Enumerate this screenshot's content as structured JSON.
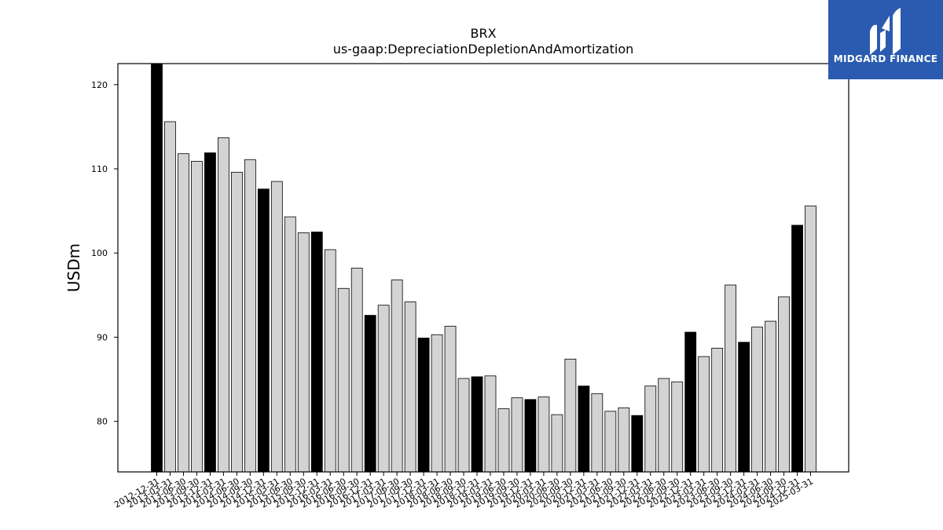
{
  "brand": {
    "name": "MIDGARD FINANCE",
    "icon": "midgard-logo-icon",
    "color": "#2a5bb0"
  },
  "chart_data": {
    "type": "bar",
    "title": "BRX",
    "subtitle": "us-gaap:DepreciationDepletionAndAmortization",
    "xlabel": "",
    "ylabel": "USDm",
    "ylim": [
      74,
      122.5
    ],
    "yticks": [
      80,
      90,
      100,
      110,
      120
    ],
    "grid": false,
    "colors": {
      "highlight": "#000000",
      "default": "#d3d3d3",
      "edge": "#000000"
    },
    "categories": [
      "2012-12-31",
      "2013-03-31",
      "2013-06-30",
      "2013-09-30",
      "2013-12-31",
      "2014-03-31",
      "2014-06-30",
      "2014-09-30",
      "2014-12-31",
      "2015-03-31",
      "2015-06-30",
      "2015-09-30",
      "2015-12-31",
      "2016-03-31",
      "2016-06-30",
      "2016-09-30",
      "2016-12-31",
      "2017-03-31",
      "2017-06-30",
      "2017-09-30",
      "2017-12-31",
      "2018-03-31",
      "2018-06-30",
      "2018-09-30",
      "2018-12-31",
      "2019-03-31",
      "2019-06-30",
      "2019-09-30",
      "2019-12-31",
      "2020-03-31",
      "2020-06-30",
      "2020-09-30",
      "2020-12-31",
      "2021-03-31",
      "2021-06-30",
      "2021-09-30",
      "2021-12-31",
      "2022-03-31",
      "2022-06-30",
      "2022-09-30",
      "2022-12-31",
      "2023-03-31",
      "2023-06-30",
      "2023-09-30",
      "2023-12-31",
      "2024-03-31",
      "2024-06-30",
      "2024-09-30",
      "2024-12-31",
      "2025-03-31"
    ],
    "values": [
      122.5,
      115.6,
      111.8,
      110.9,
      111.9,
      113.7,
      109.6,
      111.1,
      107.6,
      108.5,
      104.3,
      102.4,
      102.5,
      100.4,
      95.8,
      98.2,
      92.6,
      93.8,
      96.8,
      94.2,
      89.9,
      90.3,
      91.3,
      85.1,
      85.3,
      85.4,
      81.5,
      82.8,
      82.6,
      82.9,
      80.8,
      87.4,
      84.2,
      83.3,
      81.2,
      81.6,
      80.7,
      84.2,
      85.1,
      84.7,
      90.6,
      87.7,
      88.7,
      96.2,
      89.4,
      91.2,
      91.9,
      94.8,
      103.3,
      105.6
    ],
    "highlight": [
      true,
      false,
      false,
      false,
      true,
      false,
      false,
      false,
      true,
      false,
      false,
      false,
      true,
      false,
      false,
      false,
      true,
      false,
      false,
      false,
      true,
      false,
      false,
      false,
      true,
      false,
      false,
      false,
      true,
      false,
      false,
      false,
      true,
      false,
      false,
      false,
      true,
      false,
      false,
      false,
      true,
      false,
      false,
      false,
      true,
      false,
      false,
      false,
      true,
      false
    ]
  }
}
